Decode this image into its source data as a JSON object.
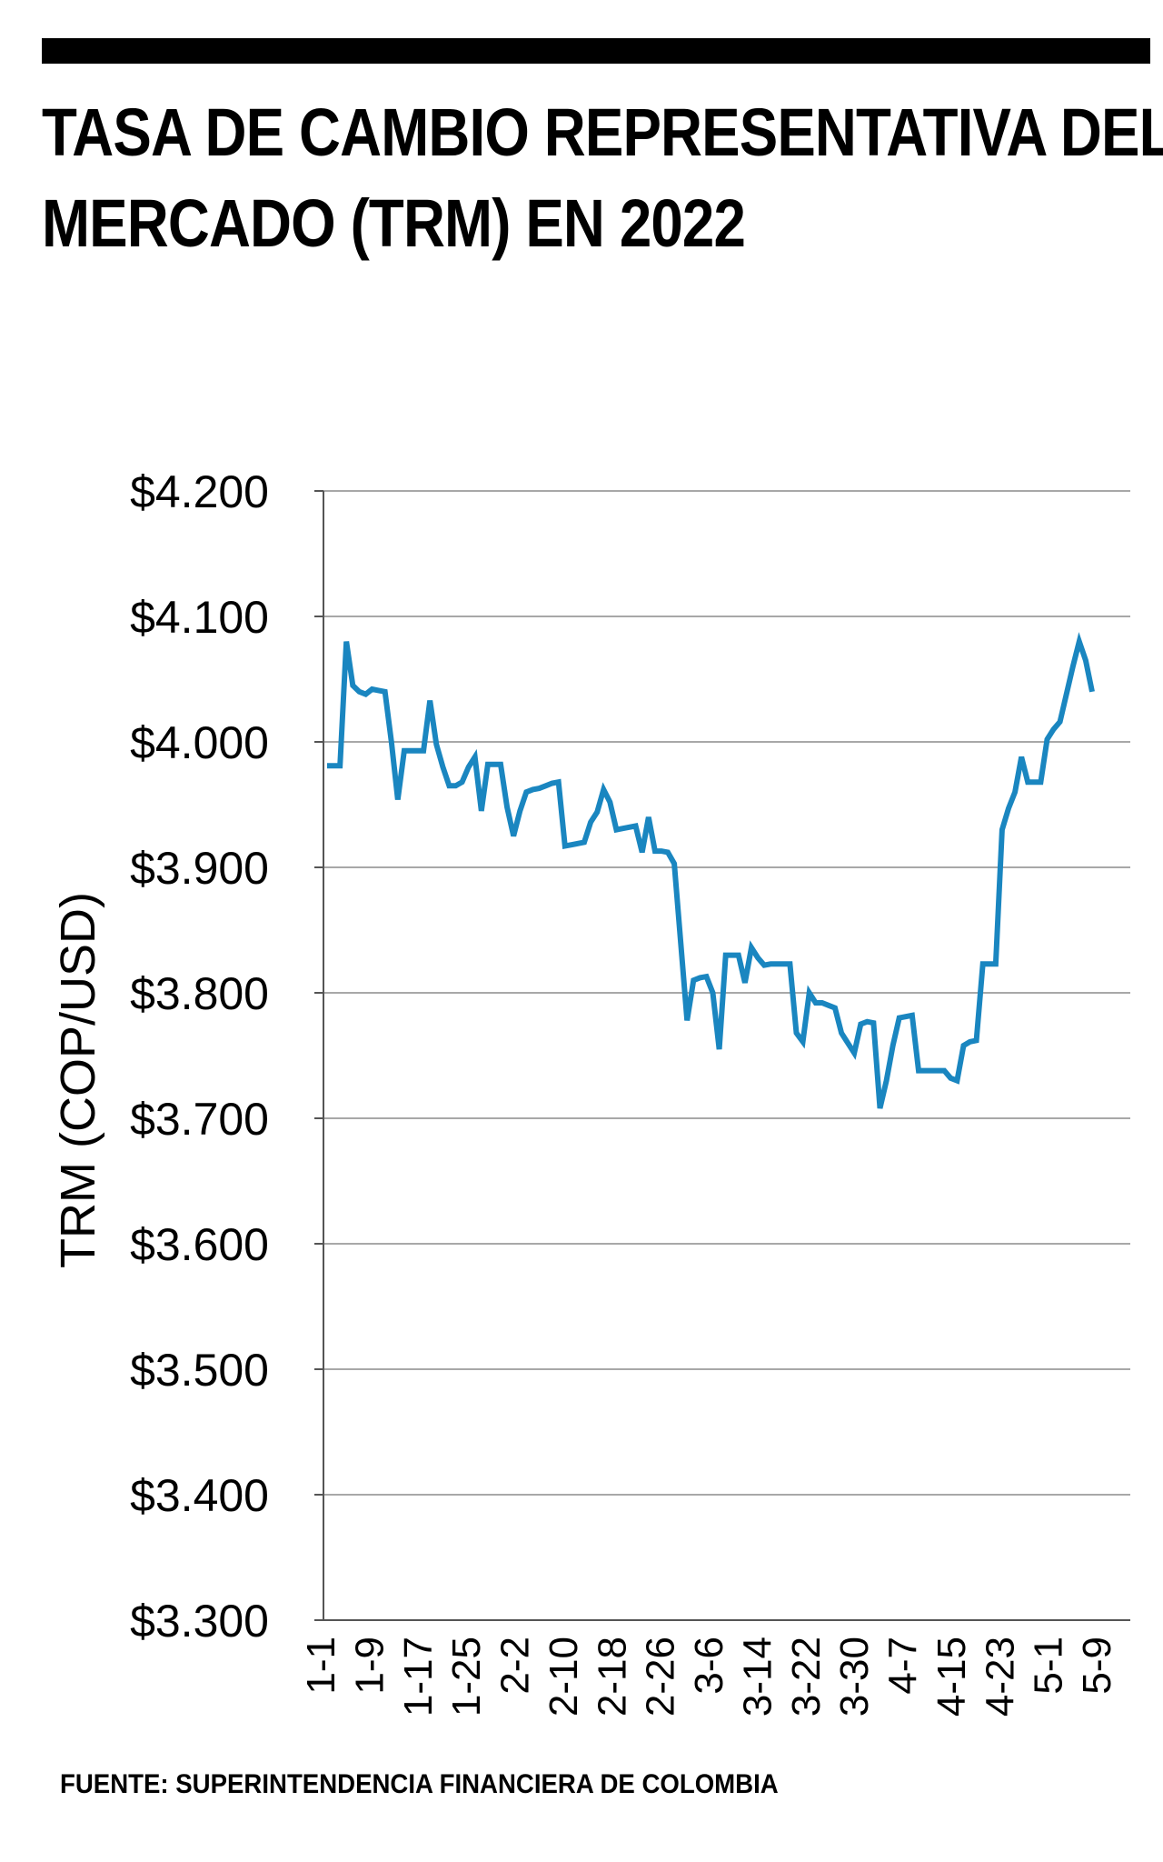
{
  "title_lines": [
    "TASA DE CAMBIO REPRESENTATIVA DEL",
    "MERCADO (TRM) EN 2022"
  ],
  "source": "FUENTE: SUPERINTENDENCIA FINANCIERA DE COLOMBIA",
  "colors": {
    "line": "#1a86c0",
    "grid": "#a8a8a8",
    "axis": "#555555",
    "text": "#000000"
  },
  "chart_data": {
    "type": "line",
    "title": "TASA DE CAMBIO REPRESENTATIVA DEL MERCADO (TRM) EN 2022",
    "xlabel": "",
    "ylabel": "TRM (COP/USD)",
    "ylim": [
      3300,
      4200
    ],
    "y_ticks": [
      3300,
      3400,
      3500,
      3600,
      3700,
      3800,
      3900,
      4000,
      4100,
      4200
    ],
    "y_tick_labels": [
      "$3.300",
      "$3.400",
      "$3.500",
      "$3.600",
      "$3.700",
      "$3.800",
      "$3.900",
      "$4.000",
      "$4.100",
      "$4.200"
    ],
    "x_tick_labels": [
      "1-1",
      "1-9",
      "1-17",
      "1-25",
      "2-2",
      "2-10",
      "2-18",
      "2-26",
      "3-6",
      "3-14",
      "3-22",
      "3-30",
      "4-7",
      "4-15",
      "4-23",
      "5-1",
      "5-9"
    ],
    "grid": true,
    "legend": "none",
    "series": [
      {
        "values": [
          3981,
          3981,
          3981,
          4080,
          4045,
          4040,
          4038,
          4042,
          4041,
          4040,
          4000,
          3954,
          3993,
          3993,
          3993,
          3993,
          4033,
          3998,
          3980,
          3965,
          3965,
          3968,
          3980,
          3988,
          3945,
          3982,
          3982,
          3982,
          3948,
          3925,
          3945,
          3960,
          3962,
          3963,
          3965,
          3967,
          3968,
          3917,
          3918,
          3919,
          3920,
          3936,
          3944,
          3962,
          3952,
          3930,
          3931,
          3932,
          3933,
          3912,
          3940,
          3913,
          3913,
          3912,
          3903,
          3840,
          3778,
          3810,
          3812,
          3813,
          3800,
          3755,
          3830,
          3830,
          3830,
          3808,
          3836,
          3828,
          3822,
          3823,
          3823,
          3823,
          3823,
          3768,
          3761,
          3800,
          3792,
          3792,
          3790,
          3788,
          3768,
          3760,
          3752,
          3775,
          3777,
          3776,
          3708,
          3730,
          3758,
          3780,
          3781,
          3782,
          3738,
          3738,
          3738,
          3738,
          3738,
          3732,
          3730,
          3758,
          3761,
          3762,
          3823,
          3823,
          3823,
          3930,
          3947,
          3960,
          3988,
          3968,
          3968,
          3968,
          4002,
          4010,
          4016,
          4038,
          4060,
          4080,
          4065,
          4040
        ]
      }
    ]
  }
}
